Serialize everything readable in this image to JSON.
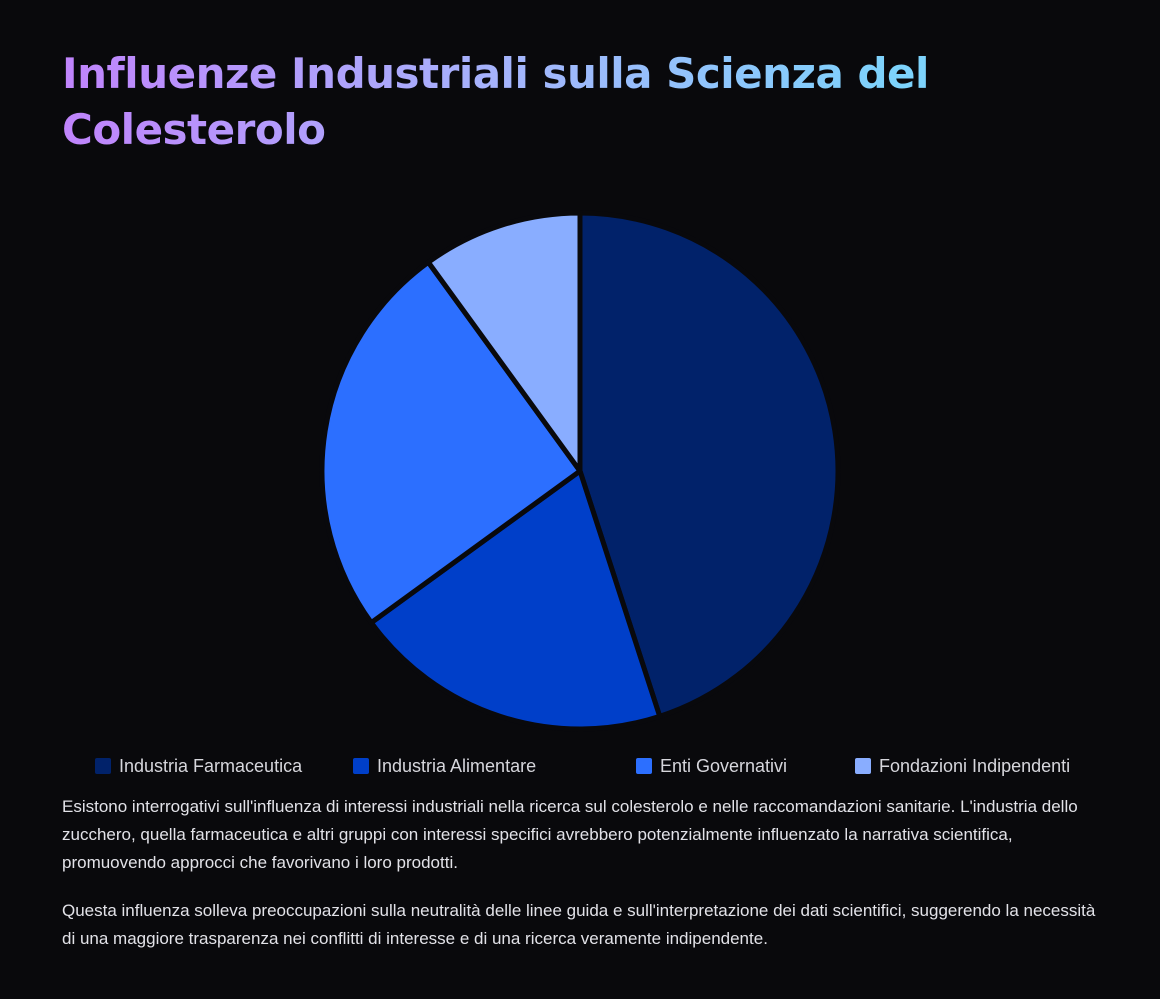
{
  "title": "Influenze Industriali sulla Scienza del Colesterolo",
  "chart_data": {
    "type": "pie",
    "categories": [
      "Industria Farmaceutica",
      "Industria Alimentare",
      "Enti Governativi",
      "Fondazioni Indipendenti"
    ],
    "values": [
      45,
      20,
      25,
      10
    ],
    "colors": [
      "#01226a",
      "#003fc9",
      "#2c6fff",
      "#89adff"
    ],
    "legend_position": "bottom"
  },
  "description": [
    "Esistono interrogativi sull'influenza di interessi industriali nella ricerca sul colesterolo e nelle raccomandazioni sanitarie. L'industria dello zucchero, quella farmaceutica e altri gruppi con interessi specifici avrebbero potenzialmente influenzato la narrativa scientifica, promuovendo approcci che favorivano i loro prodotti.",
    "Questa influenza solleva preoccupazioni sulla neutralità delle linee guida e sull'interpretazione dei dati scientifici, suggerendo la necessità di una maggiore trasparenza nei conflitti di interesse e di una ricerca veramente indipendente."
  ]
}
